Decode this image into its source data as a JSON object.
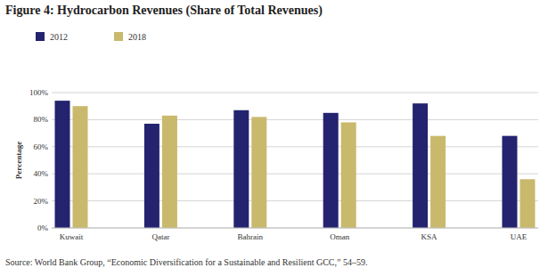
{
  "chart_data": {
    "type": "bar",
    "title": "Figure 4: Hydrocarbon Revenues (Share of Total Revenues)",
    "y_label": "Percentage",
    "annotations": [
      "Source: World Bank Group, “Economic Diversification for a Sustainable and Resilient GCC,” 54–59."
    ],
    "categories": [
      "Kuwait",
      "Qatar",
      "Bahrain",
      "Oman",
      "KSA",
      "UAE"
    ],
    "series": [
      {
        "name": "2012",
        "color": "#23236f",
        "values": [
          94,
          77,
          87,
          85,
          92,
          68
        ]
      },
      {
        "name": "2018",
        "color": "#c9b96c",
        "values": [
          90,
          83,
          82,
          78,
          68,
          36
        ]
      }
    ],
    "ylim": [
      0,
      100
    ],
    "yticks": [
      {
        "value": 0,
        "label": "0%"
      },
      {
        "value": 20,
        "label": "20%"
      },
      {
        "value": 40,
        "label": "40%"
      },
      {
        "value": 60,
        "label": "60%"
      },
      {
        "value": 80,
        "label": "80%"
      },
      {
        "value": 100,
        "label": "100%"
      }
    ],
    "grid": true,
    "legend": "top-left"
  }
}
